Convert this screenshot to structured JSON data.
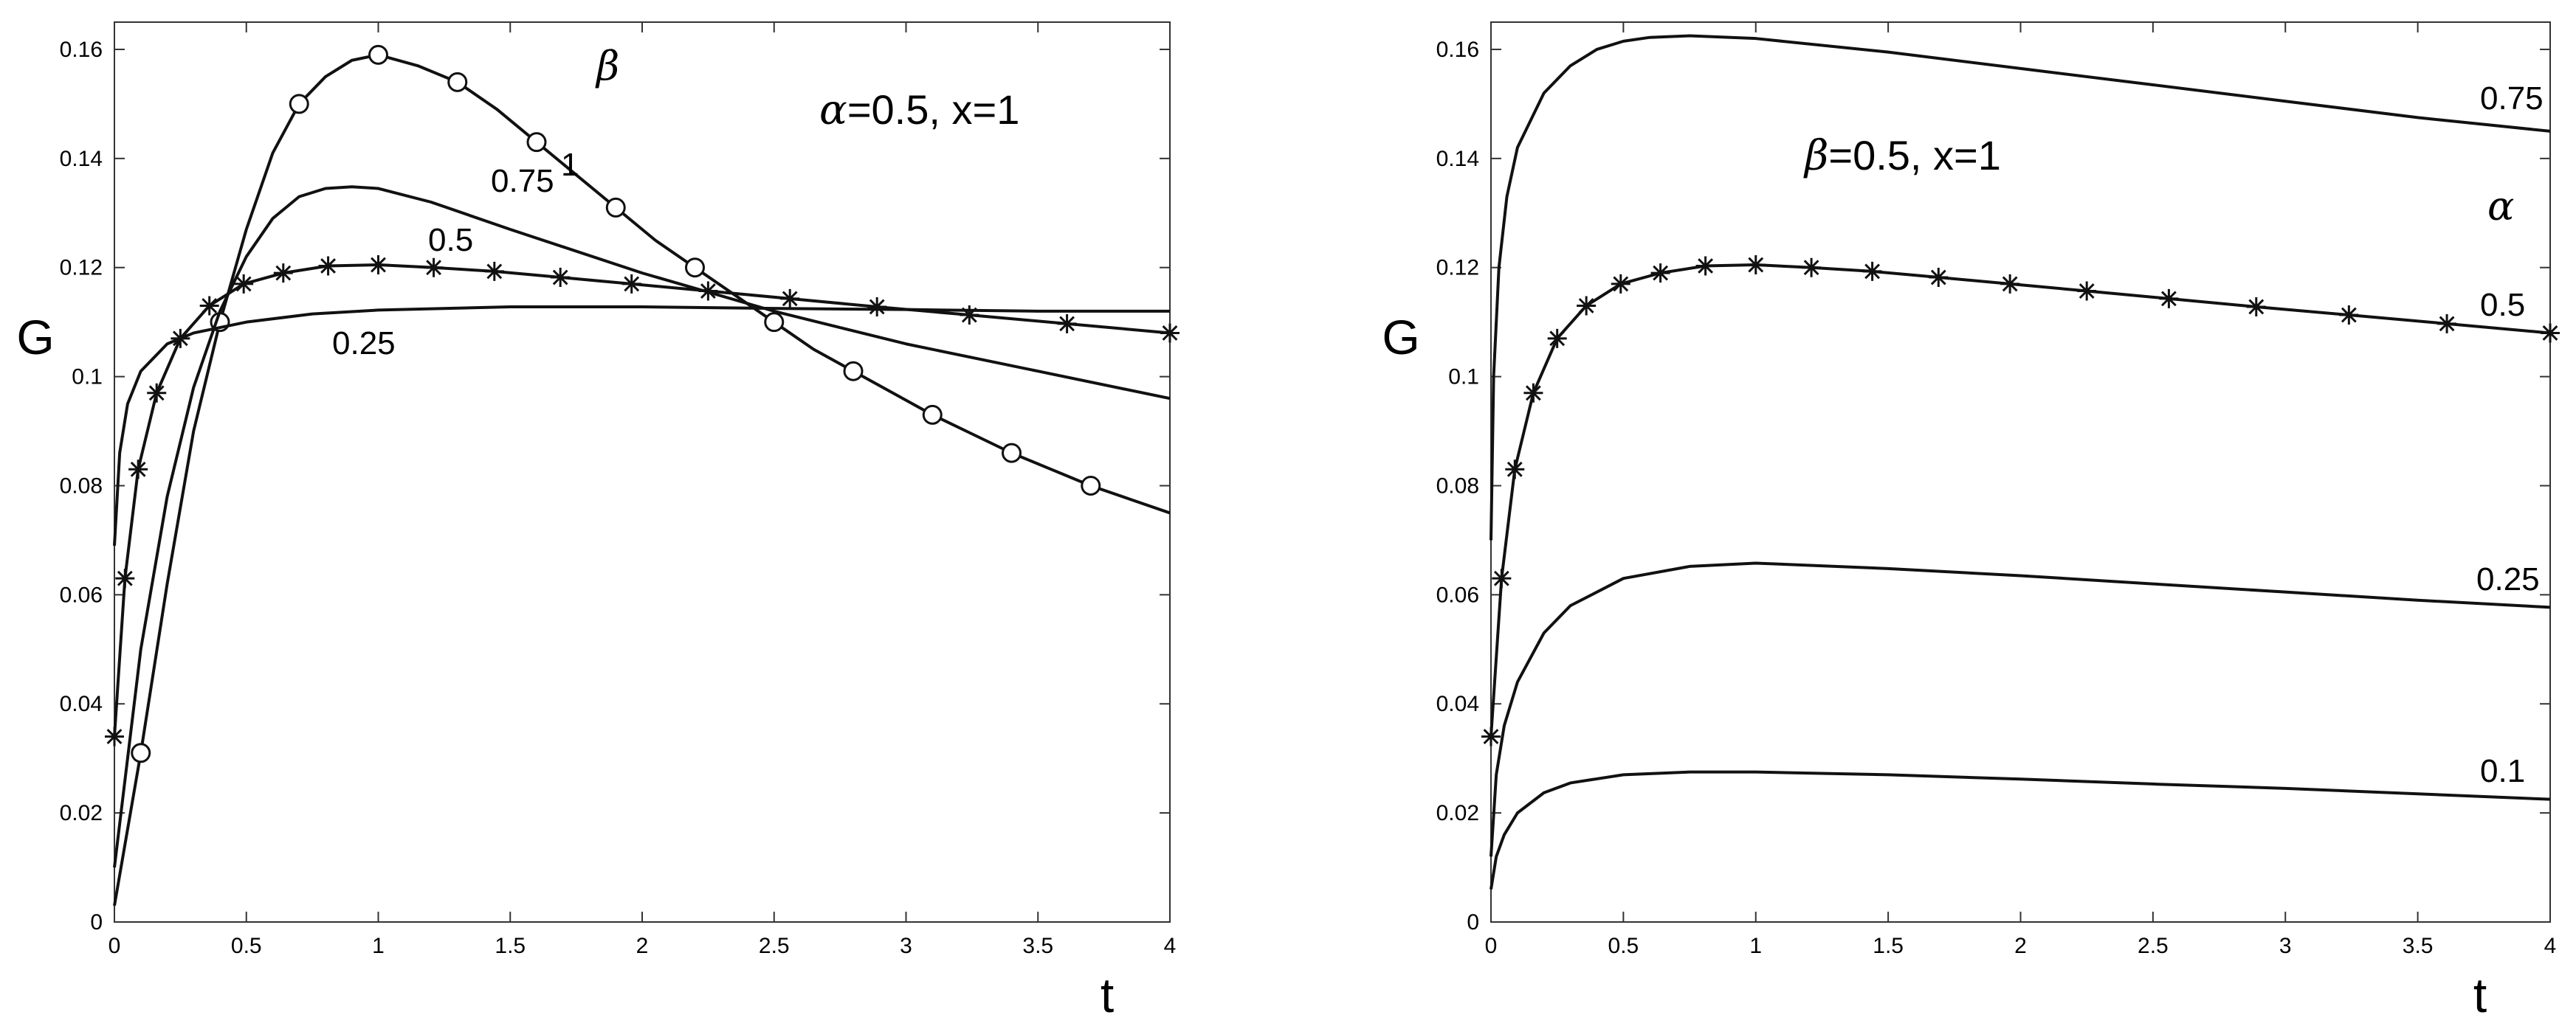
{
  "chart_data": [
    {
      "type": "line",
      "xlabel": "t",
      "ylabel": "G",
      "xlim": [
        0,
        4
      ],
      "ylim": [
        0,
        0.165
      ],
      "xticks": [
        "0",
        "0.5",
        "1",
        "1.5",
        "2",
        "2.5",
        "3",
        "3.5",
        "4"
      ],
      "yticks": [
        "0",
        "0.02",
        "0.04",
        "0.06",
        "0.08",
        "0.1",
        "0.12",
        "0.14",
        "0.16"
      ],
      "annotation": {
        "greek": "α",
        "text": "=0.5, x=1"
      },
      "parameter_symbol": "β",
      "series": [
        {
          "name": "1",
          "marker": "circle",
          "points": [
            [
              0.0,
              0.003
            ],
            [
              0.1,
              0.031
            ],
            [
              0.2,
              0.062
            ],
            [
              0.3,
              0.09
            ],
            [
              0.4,
              0.11
            ],
            [
              0.5,
              0.127
            ],
            [
              0.6,
              0.141
            ],
            [
              0.7,
              0.15
            ],
            [
              0.8,
              0.155
            ],
            [
              0.9,
              0.158
            ],
            [
              1.0,
              0.159
            ],
            [
              1.15,
              0.157
            ],
            [
              1.3,
              0.154
            ],
            [
              1.45,
              0.149
            ],
            [
              1.6,
              0.143
            ],
            [
              1.75,
              0.137
            ],
            [
              1.9,
              0.131
            ],
            [
              2.05,
              0.125
            ],
            [
              2.2,
              0.12
            ],
            [
              2.35,
              0.115
            ],
            [
              2.5,
              0.11
            ],
            [
              2.65,
              0.105
            ],
            [
              2.8,
              0.101
            ],
            [
              2.95,
              0.097
            ],
            [
              3.1,
              0.093
            ],
            [
              3.25,
              0.0895
            ],
            [
              3.4,
              0.086
            ],
            [
              3.55,
              0.083
            ],
            [
              3.7,
              0.08
            ],
            [
              3.85,
              0.0775
            ],
            [
              4.0,
              0.075
            ]
          ],
          "markers_x": [
            0.1,
            0.4,
            0.7,
            1.0,
            1.3,
            1.6,
            1.9,
            2.2,
            2.5,
            2.8,
            3.1,
            3.4,
            3.7
          ]
        },
        {
          "name": "0.75",
          "marker": "none",
          "points": [
            [
              0.0,
              0.01
            ],
            [
              0.05,
              0.03
            ],
            [
              0.1,
              0.05
            ],
            [
              0.2,
              0.078
            ],
            [
              0.3,
              0.098
            ],
            [
              0.4,
              0.112
            ],
            [
              0.5,
              0.122
            ],
            [
              0.6,
              0.129
            ],
            [
              0.7,
              0.133
            ],
            [
              0.8,
              0.1345
            ],
            [
              0.9,
              0.1348
            ],
            [
              1.0,
              0.1345
            ],
            [
              1.2,
              0.132
            ],
            [
              1.5,
              0.127
            ],
            [
              2.0,
              0.119
            ],
            [
              2.5,
              0.112
            ],
            [
              3.0,
              0.106
            ],
            [
              3.5,
              0.101
            ],
            [
              4.0,
              0.096
            ]
          ],
          "markers_x": []
        },
        {
          "name": "0.5",
          "marker": "star",
          "points": [
            [
              0.0,
              0.034
            ],
            [
              0.04,
              0.063
            ],
            [
              0.09,
              0.083
            ],
            [
              0.16,
              0.097
            ],
            [
              0.25,
              0.107
            ],
            [
              0.36,
              0.113
            ],
            [
              0.49,
              0.117
            ],
            [
              0.64,
              0.119
            ],
            [
              0.81,
              0.1203
            ],
            [
              1.0,
              0.1205
            ],
            [
              1.21,
              0.12
            ],
            [
              1.44,
              0.1193
            ],
            [
              1.69,
              0.1182
            ],
            [
              1.96,
              0.117
            ],
            [
              2.25,
              0.1157
            ],
            [
              2.56,
              0.1143
            ],
            [
              2.89,
              0.1128
            ],
            [
              3.24,
              0.1113
            ],
            [
              3.61,
              0.1097
            ],
            [
              4.0,
              0.108
            ]
          ],
          "markers_x": [
            0.0,
            0.04,
            0.09,
            0.16,
            0.25,
            0.36,
            0.49,
            0.64,
            0.81,
            1.0,
            1.21,
            1.44,
            1.69,
            1.96,
            2.25,
            2.56,
            2.89,
            3.24,
            3.61,
            4.0
          ]
        },
        {
          "name": "0.25",
          "marker": "none",
          "points": [
            [
              0.0,
              0.069
            ],
            [
              0.02,
              0.086
            ],
            [
              0.05,
              0.095
            ],
            [
              0.1,
              0.101
            ],
            [
              0.2,
              0.106
            ],
            [
              0.3,
              0.108
            ],
            [
              0.5,
              0.11
            ],
            [
              0.75,
              0.1115
            ],
            [
              1.0,
              0.1122
            ],
            [
              1.5,
              0.1128
            ],
            [
              2.0,
              0.1128
            ],
            [
              2.5,
              0.1125
            ],
            [
              3.0,
              0.1123
            ],
            [
              3.5,
              0.112
            ],
            [
              4.0,
              0.112
            ]
          ],
          "markers_x": []
        }
      ]
    },
    {
      "type": "line",
      "xlabel": "t",
      "ylabel": "G",
      "xlim": [
        0,
        4
      ],
      "ylim": [
        0,
        0.165
      ],
      "xticks": [
        "0",
        "0.5",
        "1",
        "1.5",
        "2",
        "2.5",
        "3",
        "3.5",
        "4"
      ],
      "yticks": [
        "0",
        "0.02",
        "0.04",
        "0.06",
        "0.08",
        "0.1",
        "0.12",
        "0.14",
        "0.16"
      ],
      "annotation": {
        "greek": "β",
        "text": "=0.5, x=1"
      },
      "parameter_symbol": "α",
      "series": [
        {
          "name": "0.75",
          "marker": "none",
          "points": [
            [
              0.0,
              0.07
            ],
            [
              0.01,
              0.1
            ],
            [
              0.03,
              0.12
            ],
            [
              0.06,
              0.133
            ],
            [
              0.1,
              0.142
            ],
            [
              0.2,
              0.152
            ],
            [
              0.3,
              0.157
            ],
            [
              0.4,
              0.16
            ],
            [
              0.5,
              0.1615
            ],
            [
              0.6,
              0.1622
            ],
            [
              0.75,
              0.1625
            ],
            [
              1.0,
              0.162
            ],
            [
              1.5,
              0.1595
            ],
            [
              2.0,
              0.1565
            ],
            [
              2.5,
              0.1535
            ],
            [
              3.0,
              0.1505
            ],
            [
              3.5,
              0.1475
            ],
            [
              4.0,
              0.145
            ]
          ],
          "markers_x": []
        },
        {
          "name": "0.5",
          "marker": "star",
          "points": [
            [
              0.0,
              0.034
            ],
            [
              0.04,
              0.063
            ],
            [
              0.09,
              0.083
            ],
            [
              0.16,
              0.097
            ],
            [
              0.25,
              0.107
            ],
            [
              0.36,
              0.113
            ],
            [
              0.49,
              0.117
            ],
            [
              0.64,
              0.119
            ],
            [
              0.81,
              0.1203
            ],
            [
              1.0,
              0.1205
            ],
            [
              1.21,
              0.12
            ],
            [
              1.44,
              0.1193
            ],
            [
              1.69,
              0.1182
            ],
            [
              1.96,
              0.117
            ],
            [
              2.25,
              0.1157
            ],
            [
              2.56,
              0.1143
            ],
            [
              2.89,
              0.1128
            ],
            [
              3.24,
              0.1113
            ],
            [
              3.61,
              0.1097
            ],
            [
              4.0,
              0.108
            ]
          ],
          "markers_x": [
            0.0,
            0.04,
            0.09,
            0.16,
            0.25,
            0.36,
            0.49,
            0.64,
            0.81,
            1.0,
            1.21,
            1.44,
            1.69,
            1.96,
            2.25,
            2.56,
            2.89,
            3.24,
            3.61,
            4.0
          ]
        },
        {
          "name": "0.25",
          "marker": "none",
          "points": [
            [
              0.0,
              0.012
            ],
            [
              0.02,
              0.027
            ],
            [
              0.05,
              0.036
            ],
            [
              0.1,
              0.044
            ],
            [
              0.2,
              0.053
            ],
            [
              0.3,
              0.058
            ],
            [
              0.5,
              0.063
            ],
            [
              0.75,
              0.0652
            ],
            [
              1.0,
              0.0658
            ],
            [
              1.5,
              0.0648
            ],
            [
              2.0,
              0.0635
            ],
            [
              2.5,
              0.062
            ],
            [
              3.0,
              0.0605
            ],
            [
              3.5,
              0.059
            ],
            [
              4.0,
              0.0577
            ]
          ],
          "markers_x": []
        },
        {
          "name": "0.1",
          "marker": "none",
          "points": [
            [
              0.0,
              0.006
            ],
            [
              0.02,
              0.012
            ],
            [
              0.05,
              0.016
            ],
            [
              0.1,
              0.02
            ],
            [
              0.2,
              0.0237
            ],
            [
              0.3,
              0.0255
            ],
            [
              0.5,
              0.027
            ],
            [
              0.75,
              0.0275
            ],
            [
              1.0,
              0.0275
            ],
            [
              1.5,
              0.027
            ],
            [
              2.0,
              0.0262
            ],
            [
              2.5,
              0.0253
            ],
            [
              3.0,
              0.0245
            ],
            [
              3.5,
              0.0235
            ],
            [
              4.0,
              0.0225
            ]
          ],
          "markers_x": []
        }
      ]
    }
  ]
}
